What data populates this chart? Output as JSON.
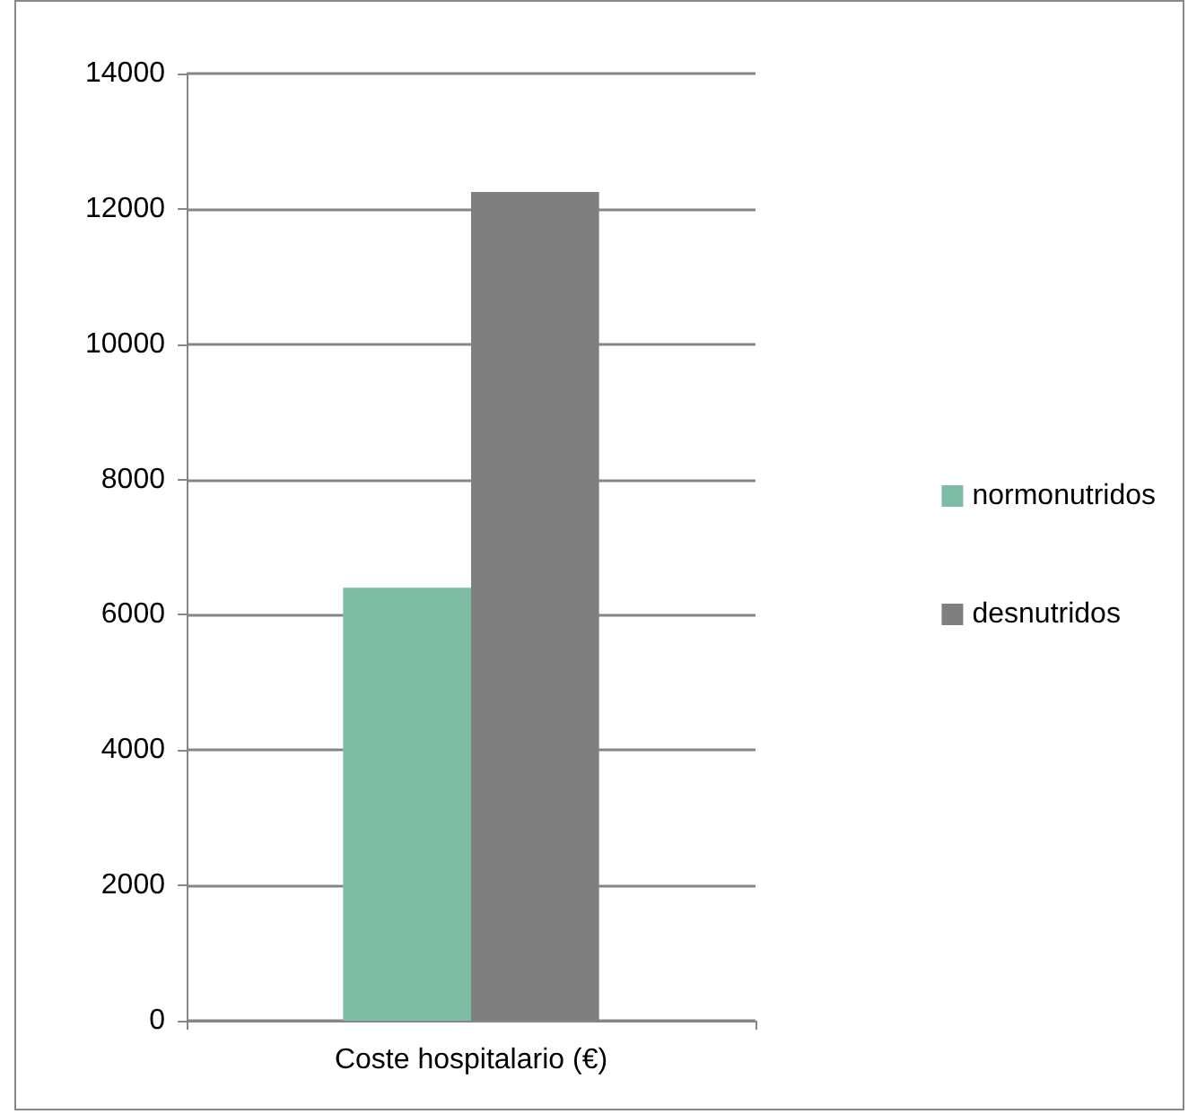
{
  "chart_data": {
    "type": "bar",
    "categories": [
      "Coste hospitalario (€)"
    ],
    "series": [
      {
        "name": "normonutridos",
        "color": "#7fbca4",
        "values": [
          6400
        ]
      },
      {
        "name": "desnutridos",
        "color": "#7f7f7f",
        "values": [
          12250
        ]
      }
    ],
    "ylim": [
      0,
      14000
    ],
    "yticks": [
      0,
      2000,
      4000,
      6000,
      8000,
      10000,
      12000,
      14000
    ],
    "grid": "y",
    "legend": "right"
  }
}
